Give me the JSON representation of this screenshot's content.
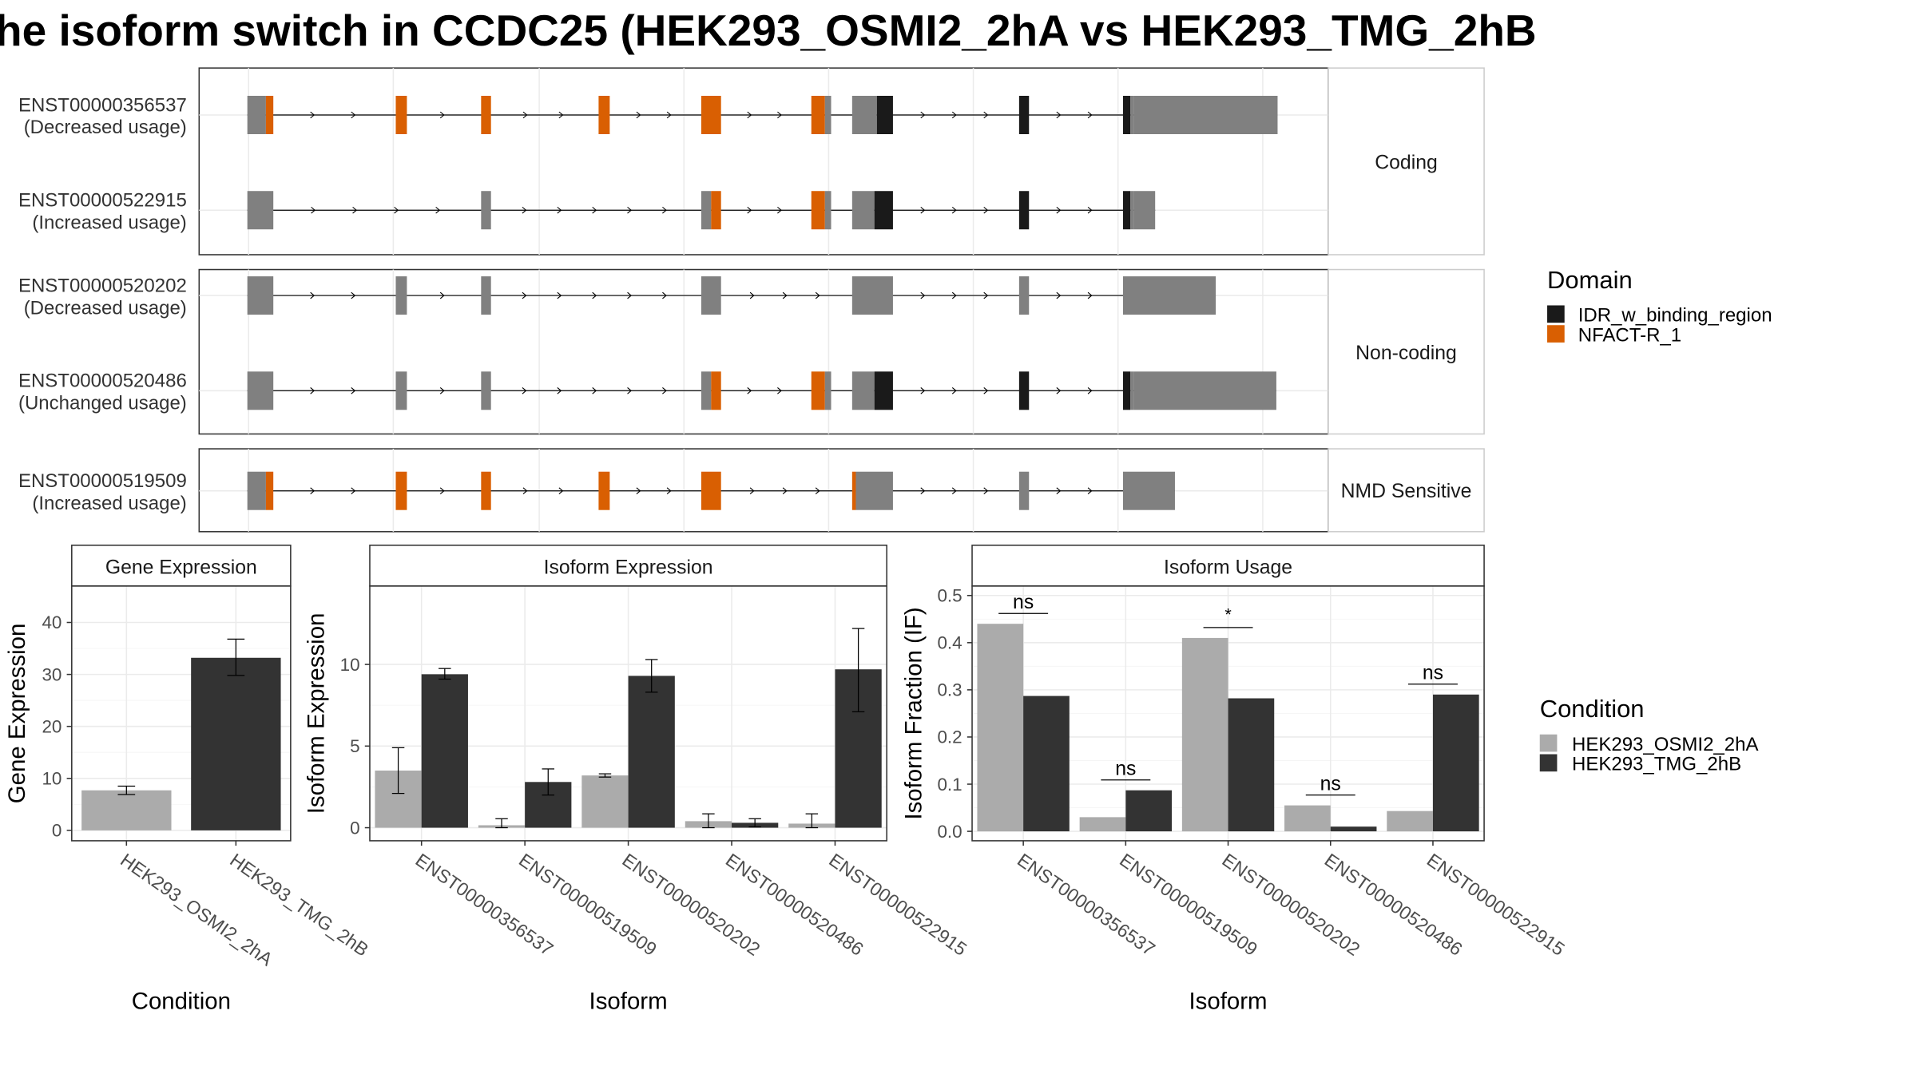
{
  "figure": {
    "title": "he isoform switch in CCDC25 (HEK293_OSMI2_2hA vs HEK293_TMG_2hB",
    "gray_color": "#808080",
    "idr_color": "#1a1a1a",
    "nfact_color": "#d95f02"
  },
  "transcripts": [
    {
      "id": "ENST00000356537",
      "usage": "(Decreased usage)",
      "group": "Coding",
      "exons": [
        [
          200,
          215,
          "g"
        ],
        [
          215,
          221,
          "o"
        ],
        [
          320,
          329,
          "o"
        ],
        [
          389,
          397,
          "o"
        ],
        [
          484,
          493,
          "o"
        ],
        [
          567,
          583,
          "o"
        ],
        [
          656,
          667,
          "o"
        ],
        [
          667,
          672,
          "g"
        ],
        [
          689,
          709,
          "g"
        ],
        [
          709,
          722,
          "b"
        ],
        [
          824,
          832,
          "b"
        ],
        [
          908,
          914,
          "b"
        ],
        [
          914,
          917,
          "g"
        ],
        [
          917,
          1033,
          "g"
        ]
      ]
    },
    {
      "id": "ENST00000522915",
      "usage": "(Increased usage)",
      "group": "Coding",
      "exons": [
        [
          200,
          221,
          "g"
        ],
        [
          389,
          397,
          "g"
        ],
        [
          567,
          575,
          "g"
        ],
        [
          575,
          583,
          "o"
        ],
        [
          656,
          667,
          "o"
        ],
        [
          667,
          672,
          "g"
        ],
        [
          689,
          707,
          "g"
        ],
        [
          707,
          722,
          "b"
        ],
        [
          824,
          832,
          "b"
        ],
        [
          908,
          914,
          "b"
        ],
        [
          914,
          917,
          "g"
        ],
        [
          917,
          934,
          "g"
        ]
      ]
    },
    {
      "id": "ENST00000520202",
      "usage": "(Decreased usage)",
      "group": "Non-coding",
      "exons": [
        [
          200,
          221,
          "g"
        ],
        [
          320,
          329,
          "g"
        ],
        [
          389,
          397,
          "g"
        ],
        [
          567,
          583,
          "g"
        ],
        [
          689,
          722,
          "g"
        ],
        [
          824,
          832,
          "g"
        ],
        [
          908,
          983,
          "g"
        ]
      ]
    },
    {
      "id": "ENST00000520486",
      "usage": "(Unchanged usage)",
      "group": "Non-coding",
      "exons": [
        [
          200,
          221,
          "g"
        ],
        [
          320,
          329,
          "g"
        ],
        [
          389,
          397,
          "g"
        ],
        [
          567,
          575,
          "g"
        ],
        [
          575,
          583,
          "o"
        ],
        [
          656,
          667,
          "o"
        ],
        [
          667,
          672,
          "g"
        ],
        [
          689,
          707,
          "g"
        ],
        [
          707,
          722,
          "b"
        ],
        [
          824,
          832,
          "b"
        ],
        [
          908,
          914,
          "b"
        ],
        [
          914,
          917,
          "g"
        ],
        [
          917,
          1032,
          "g"
        ]
      ]
    },
    {
      "id": "ENST00000519509",
      "usage": "(Increased usage)",
      "group": "NMD Sensitive",
      "exons": [
        [
          200,
          215,
          "g"
        ],
        [
          215,
          221,
          "o"
        ],
        [
          320,
          329,
          "o"
        ],
        [
          389,
          397,
          "o"
        ],
        [
          484,
          493,
          "o"
        ],
        [
          567,
          583,
          "o"
        ],
        [
          689,
          692,
          "o"
        ],
        [
          692,
          722,
          "g"
        ],
        [
          824,
          832,
          "g"
        ],
        [
          908,
          950,
          "g"
        ]
      ]
    }
  ],
  "domain_legend": {
    "title": "Domain",
    "items": [
      {
        "label": "IDR_w_binding_region",
        "color": "#1a1a1a"
      },
      {
        "label": "NFACT-R_1",
        "color": "#d95f02"
      }
    ]
  },
  "condition_legend": {
    "title": "Condition",
    "items": [
      {
        "label": "HEK293_OSMI2_2hA",
        "color": "#ababab"
      },
      {
        "label": "HEK293_TMG_2hB",
        "color": "#333333"
      }
    ]
  },
  "chart_data": [
    {
      "type": "bar",
      "title": "Gene Expression",
      "xlabel": "Condition",
      "ylabel": "Gene Expression",
      "categories": [
        "HEK293_OSMI2_2hA",
        "HEK293_TMG_2hB"
      ],
      "values": [
        7.7,
        33.2
      ],
      "errors": [
        [
          6.9,
          8.5
        ],
        [
          29.8,
          36.8
        ]
      ],
      "colors": [
        "#ababab",
        "#333333"
      ],
      "yticks": [
        0,
        10,
        20,
        30,
        40
      ],
      "ylim": [
        -2,
        47
      ],
      "grid": true
    },
    {
      "type": "bar",
      "title": "Isoform Expression",
      "xlabel": "Isoform",
      "ylabel": "Isoform Expression",
      "categories": [
        "ENST00000356537",
        "ENST00000519509",
        "ENST00000520202",
        "ENST00000520486",
        "ENST00000522915"
      ],
      "series": [
        {
          "name": "HEK293_OSMI2_2hA",
          "color": "#ababab",
          "values": [
            3.5,
            0.15,
            3.2,
            0.4,
            0.25
          ],
          "errors": [
            [
              2.1,
              4.9
            ],
            [
              0.0,
              0.55
            ],
            [
              3.1,
              3.3
            ],
            [
              0.0,
              0.85
            ],
            [
              0.0,
              0.85
            ]
          ]
        },
        {
          "name": "HEK293_TMG_2hB",
          "color": "#333333",
          "values": [
            9.4,
            2.8,
            9.3,
            0.3,
            9.7
          ],
          "errors": [
            [
              9.1,
              9.75
            ],
            [
              2.0,
              3.6
            ],
            [
              8.3,
              10.3
            ],
            [
              0.05,
              0.55
            ],
            [
              7.1,
              12.2
            ]
          ]
        }
      ],
      "yticks": [
        0,
        5,
        10
      ],
      "ylim": [
        -0.8,
        14.8
      ],
      "grid": true
    },
    {
      "type": "bar",
      "title": "Isoform Usage",
      "xlabel": "Isoform",
      "ylabel": "Isoform Fraction (IF)",
      "categories": [
        "ENST00000356537",
        "ENST00000519509",
        "ENST00000520202",
        "ENST00000520486",
        "ENST00000522915"
      ],
      "series": [
        {
          "name": "HEK293_OSMI2_2hA",
          "color": "#ababab",
          "values": [
            0.44,
            0.03,
            0.41,
            0.055,
            0.043
          ]
        },
        {
          "name": "HEK293_TMG_2hB",
          "color": "#333333",
          "values": [
            0.287,
            0.087,
            0.282,
            0.01,
            0.29
          ]
        }
      ],
      "significance": [
        {
          "category": 0,
          "label": "ns",
          "y": 0.462
        },
        {
          "category": 1,
          "label": "ns",
          "y": 0.109
        },
        {
          "category": 2,
          "label": "*",
          "y": 0.432
        },
        {
          "category": 3,
          "label": "ns",
          "y": 0.077
        },
        {
          "category": 4,
          "label": "ns",
          "y": 0.312
        }
      ],
      "yticks": [
        0.0,
        0.1,
        0.2,
        0.3,
        0.4,
        0.5
      ],
      "ytick_labels": [
        "0.0",
        "0.1",
        "0.2",
        "0.3",
        "0.4",
        "0.5"
      ],
      "ylim": [
        -0.02,
        0.52
      ],
      "grid": true
    }
  ]
}
